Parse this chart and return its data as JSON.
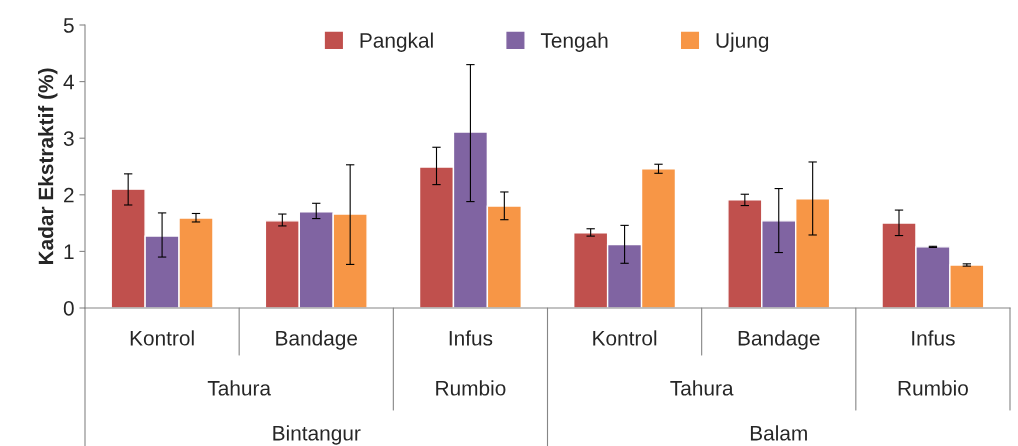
{
  "chart_data": {
    "type": "bar",
    "ylabel": "Kadar Ekstraktif (%)",
    "categories": [
      "Kontrol",
      "Bandage",
      "Infus",
      "Kontrol",
      "Bandage",
      "Infus"
    ],
    "series": [
      {
        "name": "Pangkal",
        "color": "#c0504d",
        "values": [
          2.1,
          1.54,
          2.49,
          1.33,
          1.91,
          1.5
        ],
        "errors": [
          [
            1.82,
            2.37
          ],
          [
            1.45,
            1.66
          ],
          [
            2.18,
            2.84
          ],
          [
            1.27,
            1.4
          ],
          [
            1.81,
            2.01
          ],
          [
            1.28,
            1.73
          ]
        ]
      },
      {
        "name": "Tengah",
        "color": "#8064a2",
        "values": [
          1.27,
          1.7,
          3.11,
          1.12,
          1.54,
          1.08
        ],
        "errors": [
          [
            0.9,
            1.68
          ],
          [
            1.58,
            1.85
          ],
          [
            1.88,
            4.3
          ],
          [
            0.79,
            1.46
          ],
          [
            0.98,
            2.11
          ],
          [
            1.07,
            1.09
          ]
        ]
      },
      {
        "name": "Ujung",
        "color": "#f79646",
        "values": [
          1.59,
          1.66,
          1.8,
          2.46,
          1.93,
          0.76
        ],
        "errors": [
          [
            1.52,
            1.67
          ],
          [
            0.77,
            2.53
          ],
          [
            1.56,
            2.05
          ],
          [
            2.38,
            2.54
          ],
          [
            1.29,
            2.58
          ],
          [
            0.74,
            0.78
          ]
        ]
      }
    ],
    "ylim": [
      0,
      5
    ],
    "yticks": [
      0,
      1,
      2,
      3,
      4,
      5
    ],
    "grid": false,
    "legend": "top",
    "annotations": [
      "Tahura",
      "Rumbio",
      "Tahura",
      "Rumbio",
      "Bintangur",
      "Balam"
    ]
  }
}
